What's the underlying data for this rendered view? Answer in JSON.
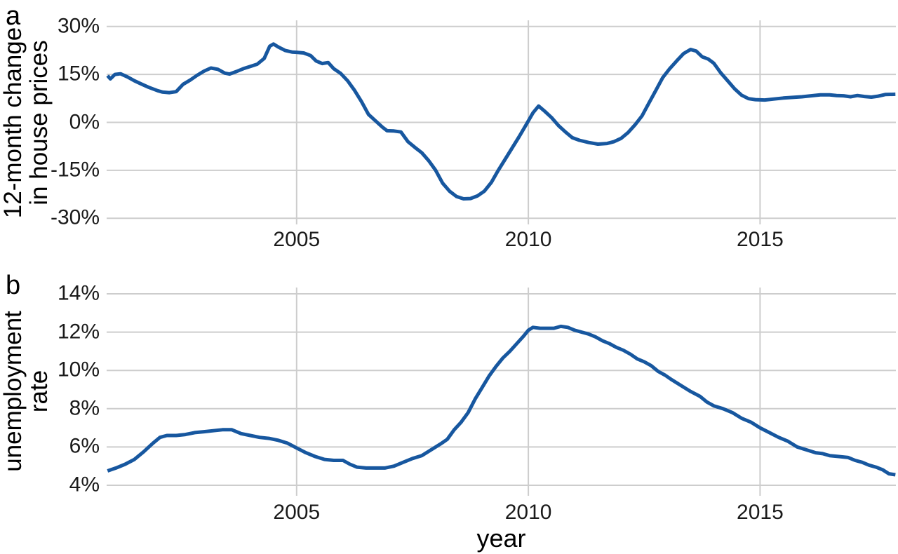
{
  "page": {
    "background": "#ffffff"
  },
  "panel_labels": {
    "a": "a",
    "b": "b"
  },
  "chart_data": [
    {
      "type": "line",
      "panel": "a",
      "title": "",
      "ylabel": "12-month change in house prices",
      "ylabel_lines": [
        "12-month change",
        "in house prices"
      ],
      "xlabel": "",
      "xlim": [
        2000.9,
        2017.93
      ],
      "ylim": [
        -31.9,
        31.9
      ],
      "x_ticks": [
        2005,
        2010,
        2015
      ],
      "x_tick_labels": [
        "2005",
        "2010",
        "2015"
      ],
      "y_ticks": [
        30,
        15,
        0,
        -15,
        -30
      ],
      "y_tick_labels": [
        "30%",
        "15%",
        "0%",
        "-15%",
        "-30%"
      ],
      "grid": "both",
      "legend": "none",
      "line_color": "#17579f",
      "grid_color": "#cdcdcd",
      "series": [
        {
          "name": "12-month change in house prices",
          "x": [
            2000.92,
            2000.98,
            2001.08,
            2001.2,
            2001.35,
            2001.5,
            2001.65,
            2001.8,
            2002.0,
            2002.1,
            2002.25,
            2002.4,
            2002.55,
            2002.7,
            2002.85,
            2003.0,
            2003.15,
            2003.3,
            2003.45,
            2003.55,
            2003.7,
            2003.85,
            2004.0,
            2004.15,
            2004.3,
            2004.42,
            2004.5,
            2004.6,
            2004.75,
            2004.9,
            2005.0,
            2005.15,
            2005.3,
            2005.42,
            2005.55,
            2005.68,
            2005.8,
            2005.95,
            2006.1,
            2006.25,
            2006.4,
            2006.55,
            2006.7,
            2006.85,
            2006.95,
            2007.1,
            2007.25,
            2007.4,
            2007.55,
            2007.7,
            2007.85,
            2008.0,
            2008.15,
            2008.3,
            2008.45,
            2008.6,
            2008.75,
            2008.9,
            2009.05,
            2009.2,
            2009.35,
            2009.5,
            2009.65,
            2009.8,
            2009.95,
            2010.1,
            2010.22,
            2010.35,
            2010.5,
            2010.65,
            2010.8,
            2010.95,
            2011.1,
            2011.3,
            2011.5,
            2011.7,
            2011.85,
            2012.0,
            2012.15,
            2012.3,
            2012.45,
            2012.6,
            2012.75,
            2012.9,
            2013.05,
            2013.2,
            2013.35,
            2013.5,
            2013.62,
            2013.75,
            2013.88,
            2014.0,
            2014.15,
            2014.3,
            2014.45,
            2014.6,
            2014.75,
            2014.9,
            2015.1,
            2015.3,
            2015.5,
            2015.7,
            2015.9,
            2016.1,
            2016.3,
            2016.5,
            2016.65,
            2016.8,
            2016.95,
            2017.1,
            2017.25,
            2017.4,
            2017.55,
            2017.7,
            2017.92
          ],
          "y": [
            14.6,
            13.6,
            15.0,
            15.2,
            14.2,
            13.0,
            12.0,
            11.0,
            9.9,
            9.5,
            9.3,
            9.6,
            11.9,
            13.2,
            14.7,
            16.0,
            17.0,
            16.6,
            15.4,
            15.1,
            15.9,
            16.8,
            17.5,
            18.2,
            20.0,
            23.8,
            24.5,
            23.6,
            22.5,
            22.0,
            21.9,
            21.7,
            20.9,
            19.2,
            18.4,
            18.7,
            16.8,
            15.3,
            13.0,
            10.0,
            6.5,
            2.5,
            0.5,
            -1.5,
            -2.6,
            -2.7,
            -3.0,
            -6.0,
            -7.8,
            -9.5,
            -12.0,
            -15.0,
            -19.0,
            -21.5,
            -23.2,
            -23.9,
            -23.8,
            -23.0,
            -21.5,
            -18.8,
            -15.0,
            -11.5,
            -8.0,
            -4.5,
            -0.8,
            3.0,
            5.1,
            3.5,
            1.5,
            -1.0,
            -3.0,
            -4.8,
            -5.6,
            -6.3,
            -6.8,
            -6.6,
            -6.0,
            -5.0,
            -3.2,
            -0.8,
            2.0,
            6.0,
            10.0,
            14.0,
            16.8,
            19.2,
            21.5,
            22.8,
            22.3,
            20.5,
            19.8,
            18.5,
            15.5,
            13.0,
            10.5,
            8.5,
            7.4,
            7.1,
            7.0,
            7.3,
            7.6,
            7.8,
            8.0,
            8.3,
            8.6,
            8.6,
            8.4,
            8.3,
            8.0,
            8.4,
            8.1,
            7.9,
            8.2,
            8.7,
            8.8
          ]
        }
      ]
    },
    {
      "type": "line",
      "panel": "b",
      "title": "",
      "ylabel": "unemployment rate",
      "ylabel_lines": [
        "unemployment",
        "rate"
      ],
      "xlabel": "year",
      "xlim": [
        2000.9,
        2017.93
      ],
      "ylim": [
        3.45,
        14.33
      ],
      "x_ticks": [
        2005,
        2010,
        2015
      ],
      "x_tick_labels": [
        "2005",
        "2010",
        "2015"
      ],
      "y_ticks": [
        14,
        12,
        10,
        8,
        6,
        4
      ],
      "y_tick_labels": [
        "14%",
        "12%",
        "10%",
        "8%",
        "6%",
        "4%"
      ],
      "grid": "both",
      "legend": "none",
      "line_color": "#17579f",
      "grid_color": "#cdcdcd",
      "series": [
        {
          "name": "unemployment rate",
          "x": [
            2000.92,
            2001.1,
            2001.3,
            2001.5,
            2001.7,
            2001.9,
            2002.05,
            2002.2,
            2002.4,
            2002.6,
            2002.8,
            2003.0,
            2003.2,
            2003.4,
            2003.6,
            2003.8,
            2004.0,
            2004.2,
            2004.4,
            2004.6,
            2004.8,
            2005.0,
            2005.2,
            2005.4,
            2005.6,
            2005.8,
            2006.0,
            2006.15,
            2006.3,
            2006.5,
            2006.7,
            2006.9,
            2007.1,
            2007.3,
            2007.5,
            2007.7,
            2007.9,
            2008.1,
            2008.25,
            2008.4,
            2008.55,
            2008.7,
            2008.85,
            2009.0,
            2009.15,
            2009.3,
            2009.45,
            2009.6,
            2009.75,
            2009.9,
            2010.0,
            2010.1,
            2010.25,
            2010.4,
            2010.55,
            2010.7,
            2010.85,
            2011.0,
            2011.15,
            2011.3,
            2011.45,
            2011.6,
            2011.75,
            2011.9,
            2012.05,
            2012.2,
            2012.35,
            2012.5,
            2012.65,
            2012.8,
            2012.95,
            2013.1,
            2013.3,
            2013.5,
            2013.7,
            2013.85,
            2014.0,
            2014.2,
            2014.4,
            2014.6,
            2014.8,
            2015.0,
            2015.2,
            2015.4,
            2015.6,
            2015.8,
            2016.0,
            2016.2,
            2016.35,
            2016.5,
            2016.7,
            2016.9,
            2017.05,
            2017.2,
            2017.35,
            2017.5,
            2017.65,
            2017.78,
            2017.92
          ],
          "y": [
            4.75,
            4.9,
            5.1,
            5.35,
            5.75,
            6.2,
            6.5,
            6.6,
            6.6,
            6.65,
            6.75,
            6.8,
            6.85,
            6.9,
            6.9,
            6.7,
            6.6,
            6.5,
            6.45,
            6.35,
            6.2,
            5.95,
            5.7,
            5.5,
            5.35,
            5.3,
            5.3,
            5.1,
            4.95,
            4.9,
            4.9,
            4.9,
            5.0,
            5.2,
            5.4,
            5.55,
            5.85,
            6.15,
            6.4,
            6.9,
            7.3,
            7.8,
            8.5,
            9.1,
            9.7,
            10.2,
            10.65,
            11.0,
            11.4,
            11.8,
            12.1,
            12.25,
            12.2,
            12.2,
            12.2,
            12.3,
            12.25,
            12.1,
            12.0,
            11.9,
            11.75,
            11.55,
            11.4,
            11.2,
            11.05,
            10.85,
            10.6,
            10.45,
            10.25,
            9.95,
            9.75,
            9.5,
            9.2,
            8.9,
            8.65,
            8.35,
            8.15,
            8.0,
            7.8,
            7.5,
            7.3,
            7.0,
            6.75,
            6.5,
            6.3,
            6.0,
            5.85,
            5.7,
            5.65,
            5.55,
            5.5,
            5.45,
            5.3,
            5.2,
            5.05,
            4.95,
            4.8,
            4.6,
            4.55
          ]
        }
      ]
    }
  ]
}
